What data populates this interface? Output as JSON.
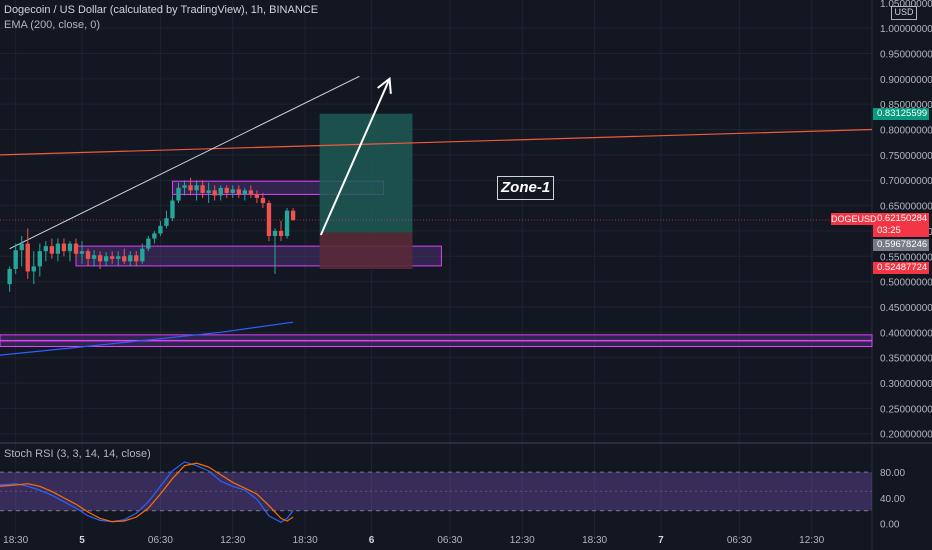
{
  "header": {
    "title": "Dogecoin / US Dollar (calculated by TradingView), 1h, BINANCE",
    "indicator": "EMA (200, close, 0)",
    "oscillator": "Stoch RSI (3, 3, 14, 14, close)"
  },
  "currency_button": "USD",
  "symbol_tag": "DOGEUSD",
  "zone_label": "Zone-1",
  "price_tags": {
    "target": {
      "price": "0.83125599",
      "color": "#089981"
    },
    "current": {
      "price": "0.62150284",
      "countdown": "03:25",
      "color": "#f23645"
    },
    "entry": {
      "price": "0.59678246",
      "color": "#787b86"
    },
    "stop": {
      "price": "0.52487724",
      "color": "#f23645"
    }
  },
  "colors": {
    "background": "#131722",
    "up_candle": "#26a69a",
    "down_candle": "#ef5350",
    "ema": "#f05a3c",
    "trend_line": "#d1d4dc",
    "zone_border": "#e040fb",
    "stoch_k": "#2962ff",
    "stoch_d": "#ff6d00",
    "profit_fill": "#1e5a55",
    "loss_fill": "#5a2a37"
  },
  "chart_data": {
    "type": "candlestick",
    "price_axis": {
      "range": [
        0.1856,
        1.0555
      ],
      "ticks": [
        1.0,
        0.95,
        0.9,
        0.85,
        0.8,
        0.75,
        0.7,
        0.65,
        0.6,
        0.55,
        0.5,
        0.45,
        0.4,
        0.35,
        0.3,
        0.25,
        0.2
      ],
      "tick_labels": [
        "1.00000000",
        "0.95000000",
        "0.90000000",
        "0.85000000",
        "0.80000000",
        "0.75000000",
        "0.70000000",
        "0.65000000",
        "0.60000000",
        "0.55000000",
        "0.50000000",
        "0.45000000",
        "0.40000000",
        "0.35000000",
        "0.30000000",
        "0.25000000",
        "0.20000000"
      ],
      "top_partial_label": "1.05000000"
    },
    "time_axis": {
      "labels": [
        "18:30",
        "5",
        "06:30",
        "12:30",
        "18:30",
        "6",
        "06:30",
        "12:30",
        "18:30",
        "7",
        "06:30",
        "12:30"
      ],
      "label_hours": [
        0,
        5.5,
        12,
        18,
        24,
        29.5,
        36,
        42,
        48,
        53.5,
        60,
        66
      ],
      "range_hours": [
        -1.3,
        71
      ]
    },
    "candles": [
      {
        "t": -0.5,
        "o": 0.495,
        "h": 0.53,
        "l": 0.48,
        "c": 0.525
      },
      {
        "t": 0.0,
        "o": 0.525,
        "h": 0.575,
        "l": 0.515,
        "c": 0.562
      },
      {
        "t": 0.5,
        "o": 0.562,
        "h": 0.59,
        "l": 0.53,
        "c": 0.575
      },
      {
        "t": 1.0,
        "o": 0.575,
        "h": 0.605,
        "l": 0.505,
        "c": 0.52
      },
      {
        "t": 1.5,
        "o": 0.52,
        "h": 0.56,
        "l": 0.495,
        "c": 0.53
      },
      {
        "t": 2.0,
        "o": 0.53,
        "h": 0.575,
        "l": 0.51,
        "c": 0.56
      },
      {
        "t": 2.5,
        "o": 0.56,
        "h": 0.58,
        "l": 0.54,
        "c": 0.57
      },
      {
        "t": 3.0,
        "o": 0.57,
        "h": 0.585,
        "l": 0.545,
        "c": 0.555
      },
      {
        "t": 3.5,
        "o": 0.555,
        "h": 0.585,
        "l": 0.54,
        "c": 0.575
      },
      {
        "t": 4.0,
        "o": 0.575,
        "h": 0.585,
        "l": 0.55,
        "c": 0.56
      },
      {
        "t": 4.5,
        "o": 0.56,
        "h": 0.58,
        "l": 0.54,
        "c": 0.575
      },
      {
        "t": 5.0,
        "o": 0.575,
        "h": 0.585,
        "l": 0.545,
        "c": 0.555
      },
      {
        "t": 5.5,
        "o": 0.555,
        "h": 0.58,
        "l": 0.535,
        "c": 0.56
      },
      {
        "t": 6.0,
        "o": 0.56,
        "h": 0.565,
        "l": 0.53,
        "c": 0.545
      },
      {
        "t": 6.5,
        "o": 0.545,
        "h": 0.562,
        "l": 0.53,
        "c": 0.552
      },
      {
        "t": 7.0,
        "o": 0.552,
        "h": 0.56,
        "l": 0.525,
        "c": 0.54
      },
      {
        "t": 7.5,
        "o": 0.54,
        "h": 0.558,
        "l": 0.53,
        "c": 0.55
      },
      {
        "t": 8.0,
        "o": 0.55,
        "h": 0.56,
        "l": 0.535,
        "c": 0.545
      },
      {
        "t": 8.5,
        "o": 0.545,
        "h": 0.56,
        "l": 0.53,
        "c": 0.55
      },
      {
        "t": 9.0,
        "o": 0.55,
        "h": 0.565,
        "l": 0.535,
        "c": 0.54
      },
      {
        "t": 9.5,
        "o": 0.54,
        "h": 0.56,
        "l": 0.53,
        "c": 0.552
      },
      {
        "t": 10.0,
        "o": 0.552,
        "h": 0.56,
        "l": 0.53,
        "c": 0.54
      },
      {
        "t": 10.5,
        "o": 0.54,
        "h": 0.575,
        "l": 0.535,
        "c": 0.565
      },
      {
        "t": 11.0,
        "o": 0.565,
        "h": 0.59,
        "l": 0.56,
        "c": 0.585
      },
      {
        "t": 11.5,
        "o": 0.585,
        "h": 0.6,
        "l": 0.575,
        "c": 0.595
      },
      {
        "t": 12.0,
        "o": 0.595,
        "h": 0.62,
        "l": 0.59,
        "c": 0.61
      },
      {
        "t": 12.5,
        "o": 0.61,
        "h": 0.64,
        "l": 0.605,
        "c": 0.625
      },
      {
        "t": 13.0,
        "o": 0.625,
        "h": 0.67,
        "l": 0.62,
        "c": 0.66
      },
      {
        "t": 13.5,
        "o": 0.66,
        "h": 0.695,
        "l": 0.655,
        "c": 0.685
      },
      {
        "t": 14.0,
        "o": 0.685,
        "h": 0.7,
        "l": 0.67,
        "c": 0.69
      },
      {
        "t": 14.5,
        "o": 0.69,
        "h": 0.705,
        "l": 0.67,
        "c": 0.68
      },
      {
        "t": 15.0,
        "o": 0.68,
        "h": 0.7,
        "l": 0.66,
        "c": 0.69
      },
      {
        "t": 15.5,
        "o": 0.69,
        "h": 0.7,
        "l": 0.665,
        "c": 0.675
      },
      {
        "t": 16.0,
        "o": 0.675,
        "h": 0.695,
        "l": 0.655,
        "c": 0.68
      },
      {
        "t": 16.5,
        "o": 0.68,
        "h": 0.69,
        "l": 0.66,
        "c": 0.67
      },
      {
        "t": 17.0,
        "o": 0.67,
        "h": 0.69,
        "l": 0.66,
        "c": 0.685
      },
      {
        "t": 17.5,
        "o": 0.685,
        "h": 0.69,
        "l": 0.665,
        "c": 0.675
      },
      {
        "t": 18.0,
        "o": 0.675,
        "h": 0.69,
        "l": 0.665,
        "c": 0.682
      },
      {
        "t": 18.5,
        "o": 0.682,
        "h": 0.69,
        "l": 0.665,
        "c": 0.672
      },
      {
        "t": 19.0,
        "o": 0.672,
        "h": 0.685,
        "l": 0.66,
        "c": 0.68
      },
      {
        "t": 19.5,
        "o": 0.68,
        "h": 0.69,
        "l": 0.665,
        "c": 0.672
      },
      {
        "t": 20.0,
        "o": 0.672,
        "h": 0.68,
        "l": 0.655,
        "c": 0.665
      },
      {
        "t": 20.5,
        "o": 0.665,
        "h": 0.675,
        "l": 0.645,
        "c": 0.655
      },
      {
        "t": 21.0,
        "o": 0.655,
        "h": 0.66,
        "l": 0.58,
        "c": 0.59
      },
      {
        "t": 21.5,
        "o": 0.59,
        "h": 0.605,
        "l": 0.515,
        "c": 0.6
      },
      {
        "t": 22.0,
        "o": 0.6,
        "h": 0.62,
        "l": 0.58,
        "c": 0.59
      },
      {
        "t": 22.5,
        "o": 0.59,
        "h": 0.645,
        "l": 0.585,
        "c": 0.64
      },
      {
        "t": 23.0,
        "o": 0.64,
        "h": 0.645,
        "l": 0.62,
        "c": 0.6215
      }
    ],
    "ema": [
      {
        "t": -1.3,
        "v": 0.75
      },
      {
        "t": 71,
        "v": 0.8
      }
    ],
    "ema_lower": [
      {
        "t": -1.3,
        "v": 0.355
      },
      {
        "t": 5,
        "v": 0.37
      },
      {
        "t": 11,
        "v": 0.385
      },
      {
        "t": 17,
        "v": 0.4
      },
      {
        "t": 23,
        "v": 0.42
      }
    ],
    "trend_line": [
      {
        "t": -0.5,
        "v": 0.565
      },
      {
        "t": 28.5,
        "v": 0.905
      }
    ],
    "zones": [
      {
        "t1": 13,
        "t2": 30.5,
        "top": 0.698,
        "bottom": 0.672,
        "border": true
      },
      {
        "t1": 5,
        "t2": 35.3,
        "top": 0.57,
        "bottom": 0.531,
        "border": true
      },
      {
        "t1": -1.3,
        "t2": 71,
        "top": 0.395,
        "bottom": 0.384,
        "border": true
      },
      {
        "t1": -1.3,
        "t2": 71,
        "top": 0.383,
        "bottom": 0.372,
        "border": true
      }
    ],
    "position": {
      "t1": 25.2,
      "t2": 32.9,
      "target": 0.83125599,
      "entry": 0.59678246,
      "stop": 0.52487724
    },
    "arrow": {
      "from": {
        "t": 25.3,
        "v": 0.592
      },
      "to": {
        "t": 31,
        "v": 0.9
      }
    },
    "stoch_rsi": {
      "axis_labels": [
        "80.00",
        "40.00",
        "0.00"
      ],
      "levels": [
        80,
        20
      ],
      "range": [
        -10,
        102
      ],
      "k": [
        {
          "t": -1.3,
          "v": 60
        },
        {
          "t": 0,
          "v": 62
        },
        {
          "t": 1,
          "v": 58
        },
        {
          "t": 2,
          "v": 52
        },
        {
          "t": 3,
          "v": 44
        },
        {
          "t": 4,
          "v": 34
        },
        {
          "t": 5,
          "v": 24
        },
        {
          "t": 6,
          "v": 12
        },
        {
          "t": 7,
          "v": 5
        },
        {
          "t": 8,
          "v": 3
        },
        {
          "t": 9,
          "v": 6
        },
        {
          "t": 10,
          "v": 16
        },
        {
          "t": 11,
          "v": 34
        },
        {
          "t": 12,
          "v": 58
        },
        {
          "t": 13,
          "v": 82
        },
        {
          "t": 14,
          "v": 96
        },
        {
          "t": 15,
          "v": 90
        },
        {
          "t": 16,
          "v": 82
        },
        {
          "t": 17,
          "v": 66
        },
        {
          "t": 18,
          "v": 58
        },
        {
          "t": 19,
          "v": 52
        },
        {
          "t": 20,
          "v": 38
        },
        {
          "t": 21,
          "v": 12
        },
        {
          "t": 22,
          "v": 2
        },
        {
          "t": 22.5,
          "v": 8
        },
        {
          "t": 23,
          "v": 20
        }
      ],
      "d": [
        {
          "t": -1.3,
          "v": 58
        },
        {
          "t": 0,
          "v": 60
        },
        {
          "t": 1,
          "v": 62
        },
        {
          "t": 2,
          "v": 58
        },
        {
          "t": 3,
          "v": 50
        },
        {
          "t": 4,
          "v": 40
        },
        {
          "t": 5,
          "v": 30
        },
        {
          "t": 6,
          "v": 18
        },
        {
          "t": 7,
          "v": 8
        },
        {
          "t": 8,
          "v": 3
        },
        {
          "t": 9,
          "v": 4
        },
        {
          "t": 10,
          "v": 10
        },
        {
          "t": 11,
          "v": 24
        },
        {
          "t": 12,
          "v": 46
        },
        {
          "t": 13,
          "v": 70
        },
        {
          "t": 14,
          "v": 90
        },
        {
          "t": 15,
          "v": 94
        },
        {
          "t": 16,
          "v": 88
        },
        {
          "t": 17,
          "v": 76
        },
        {
          "t": 18,
          "v": 64
        },
        {
          "t": 19,
          "v": 55
        },
        {
          "t": 20,
          "v": 46
        },
        {
          "t": 21,
          "v": 28
        },
        {
          "t": 22,
          "v": 8
        },
        {
          "t": 22.5,
          "v": 4
        },
        {
          "t": 23,
          "v": 10
        }
      ]
    }
  }
}
